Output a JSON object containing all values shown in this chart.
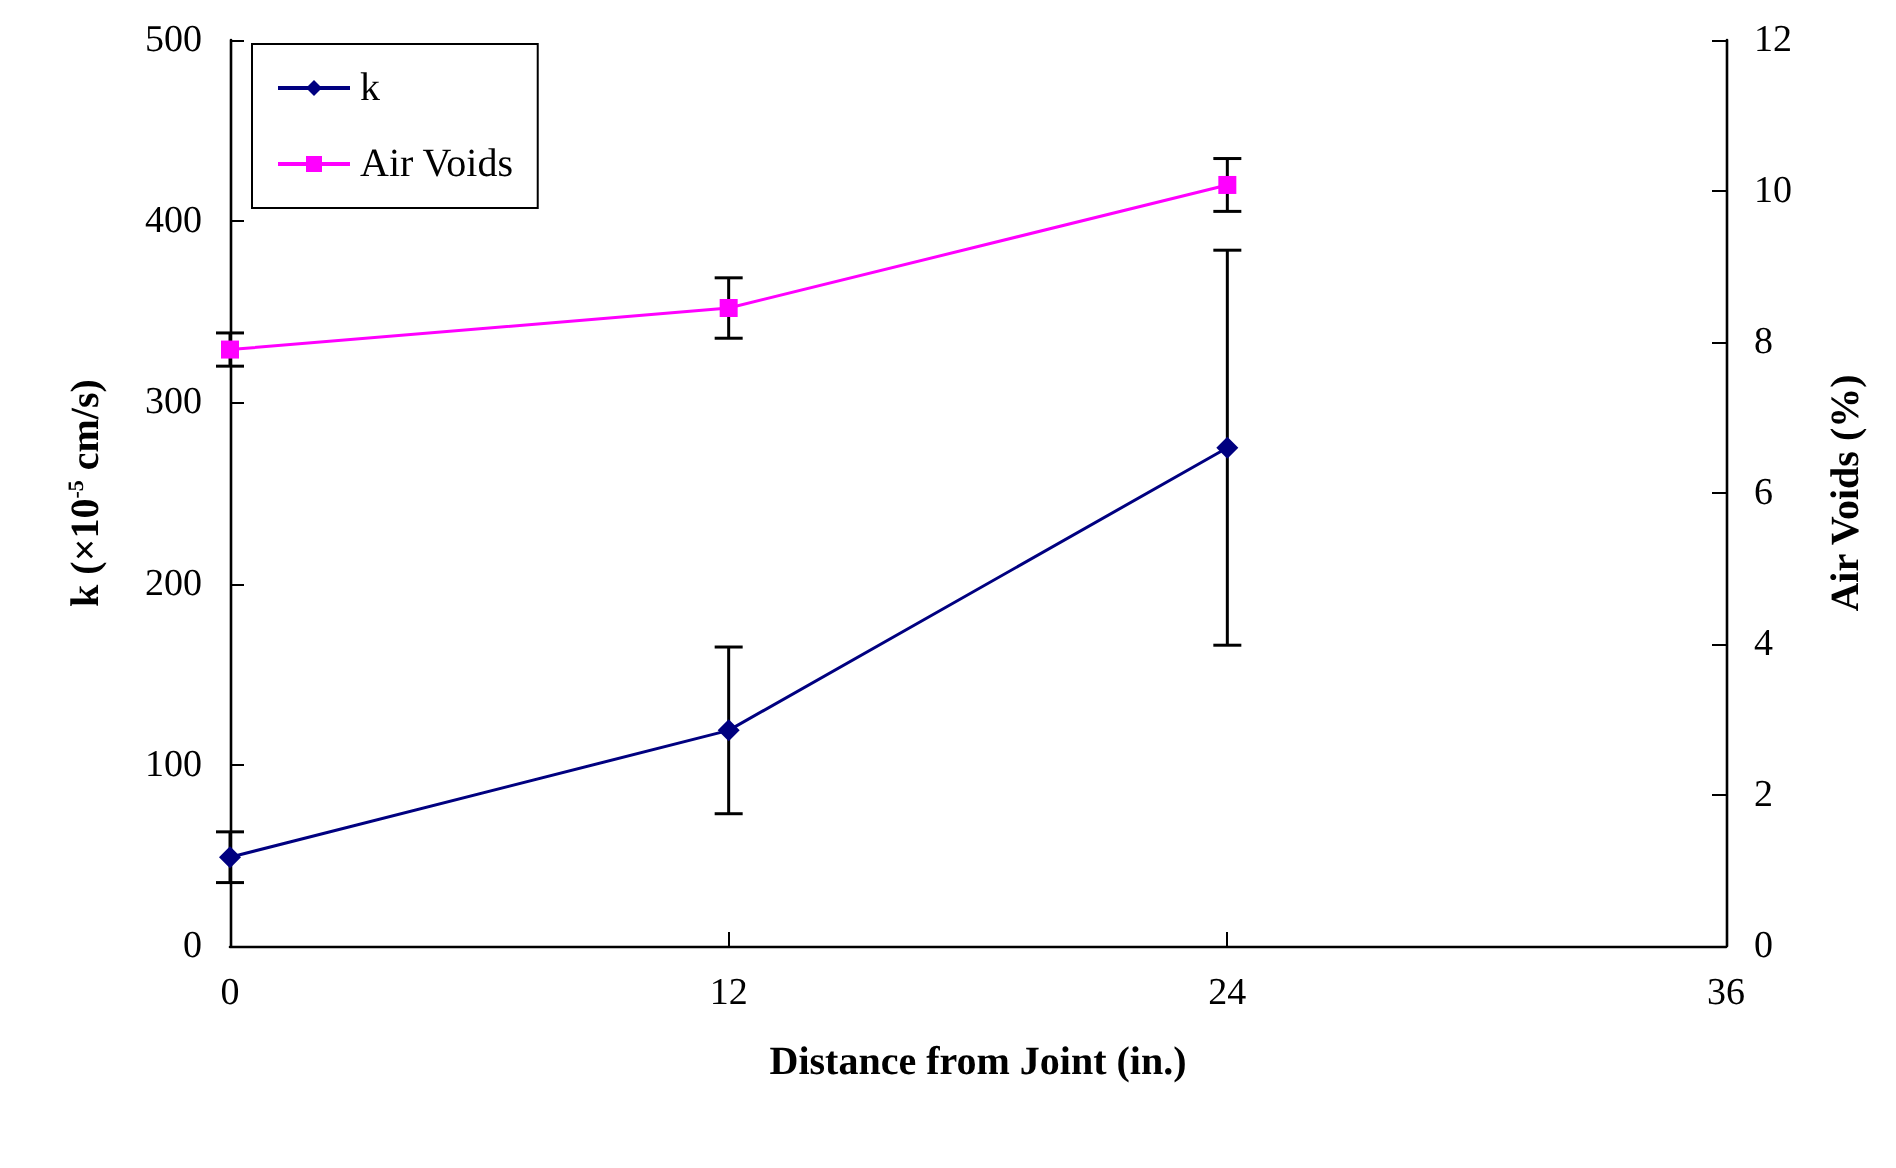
{
  "chart_data": {
    "type": "line",
    "xlabel": "Distance from Joint (in.)",
    "ylabel": "k (×10$^{-5}$ cm/s)",
    "y2label": "Air Voids (%)",
    "x": [
      0,
      12,
      24
    ],
    "xlim": [
      0,
      36
    ],
    "xticks": [
      0,
      12,
      24,
      36
    ],
    "ylim": [
      0,
      500
    ],
    "yticks": [
      0,
      100,
      200,
      300,
      400,
      500
    ],
    "y2lim": [
      0,
      12
    ],
    "y2ticks": [
      0,
      2,
      4,
      6,
      8,
      10,
      12
    ],
    "grid": false,
    "legend": "top left",
    "series": [
      {
        "name": "k",
        "color": "#000080",
        "marker": "diamond",
        "values": [
          49,
          119,
          275
        ],
        "errors": [
          14,
          46,
          109
        ]
      },
      {
        "name": "Air Voids",
        "color": "#ff00ff",
        "marker": "square",
        "axis": "y2",
        "values": [
          7.9,
          8.45,
          10.08
        ],
        "errors": [
          0.22,
          0.4,
          0.35
        ]
      }
    ]
  }
}
